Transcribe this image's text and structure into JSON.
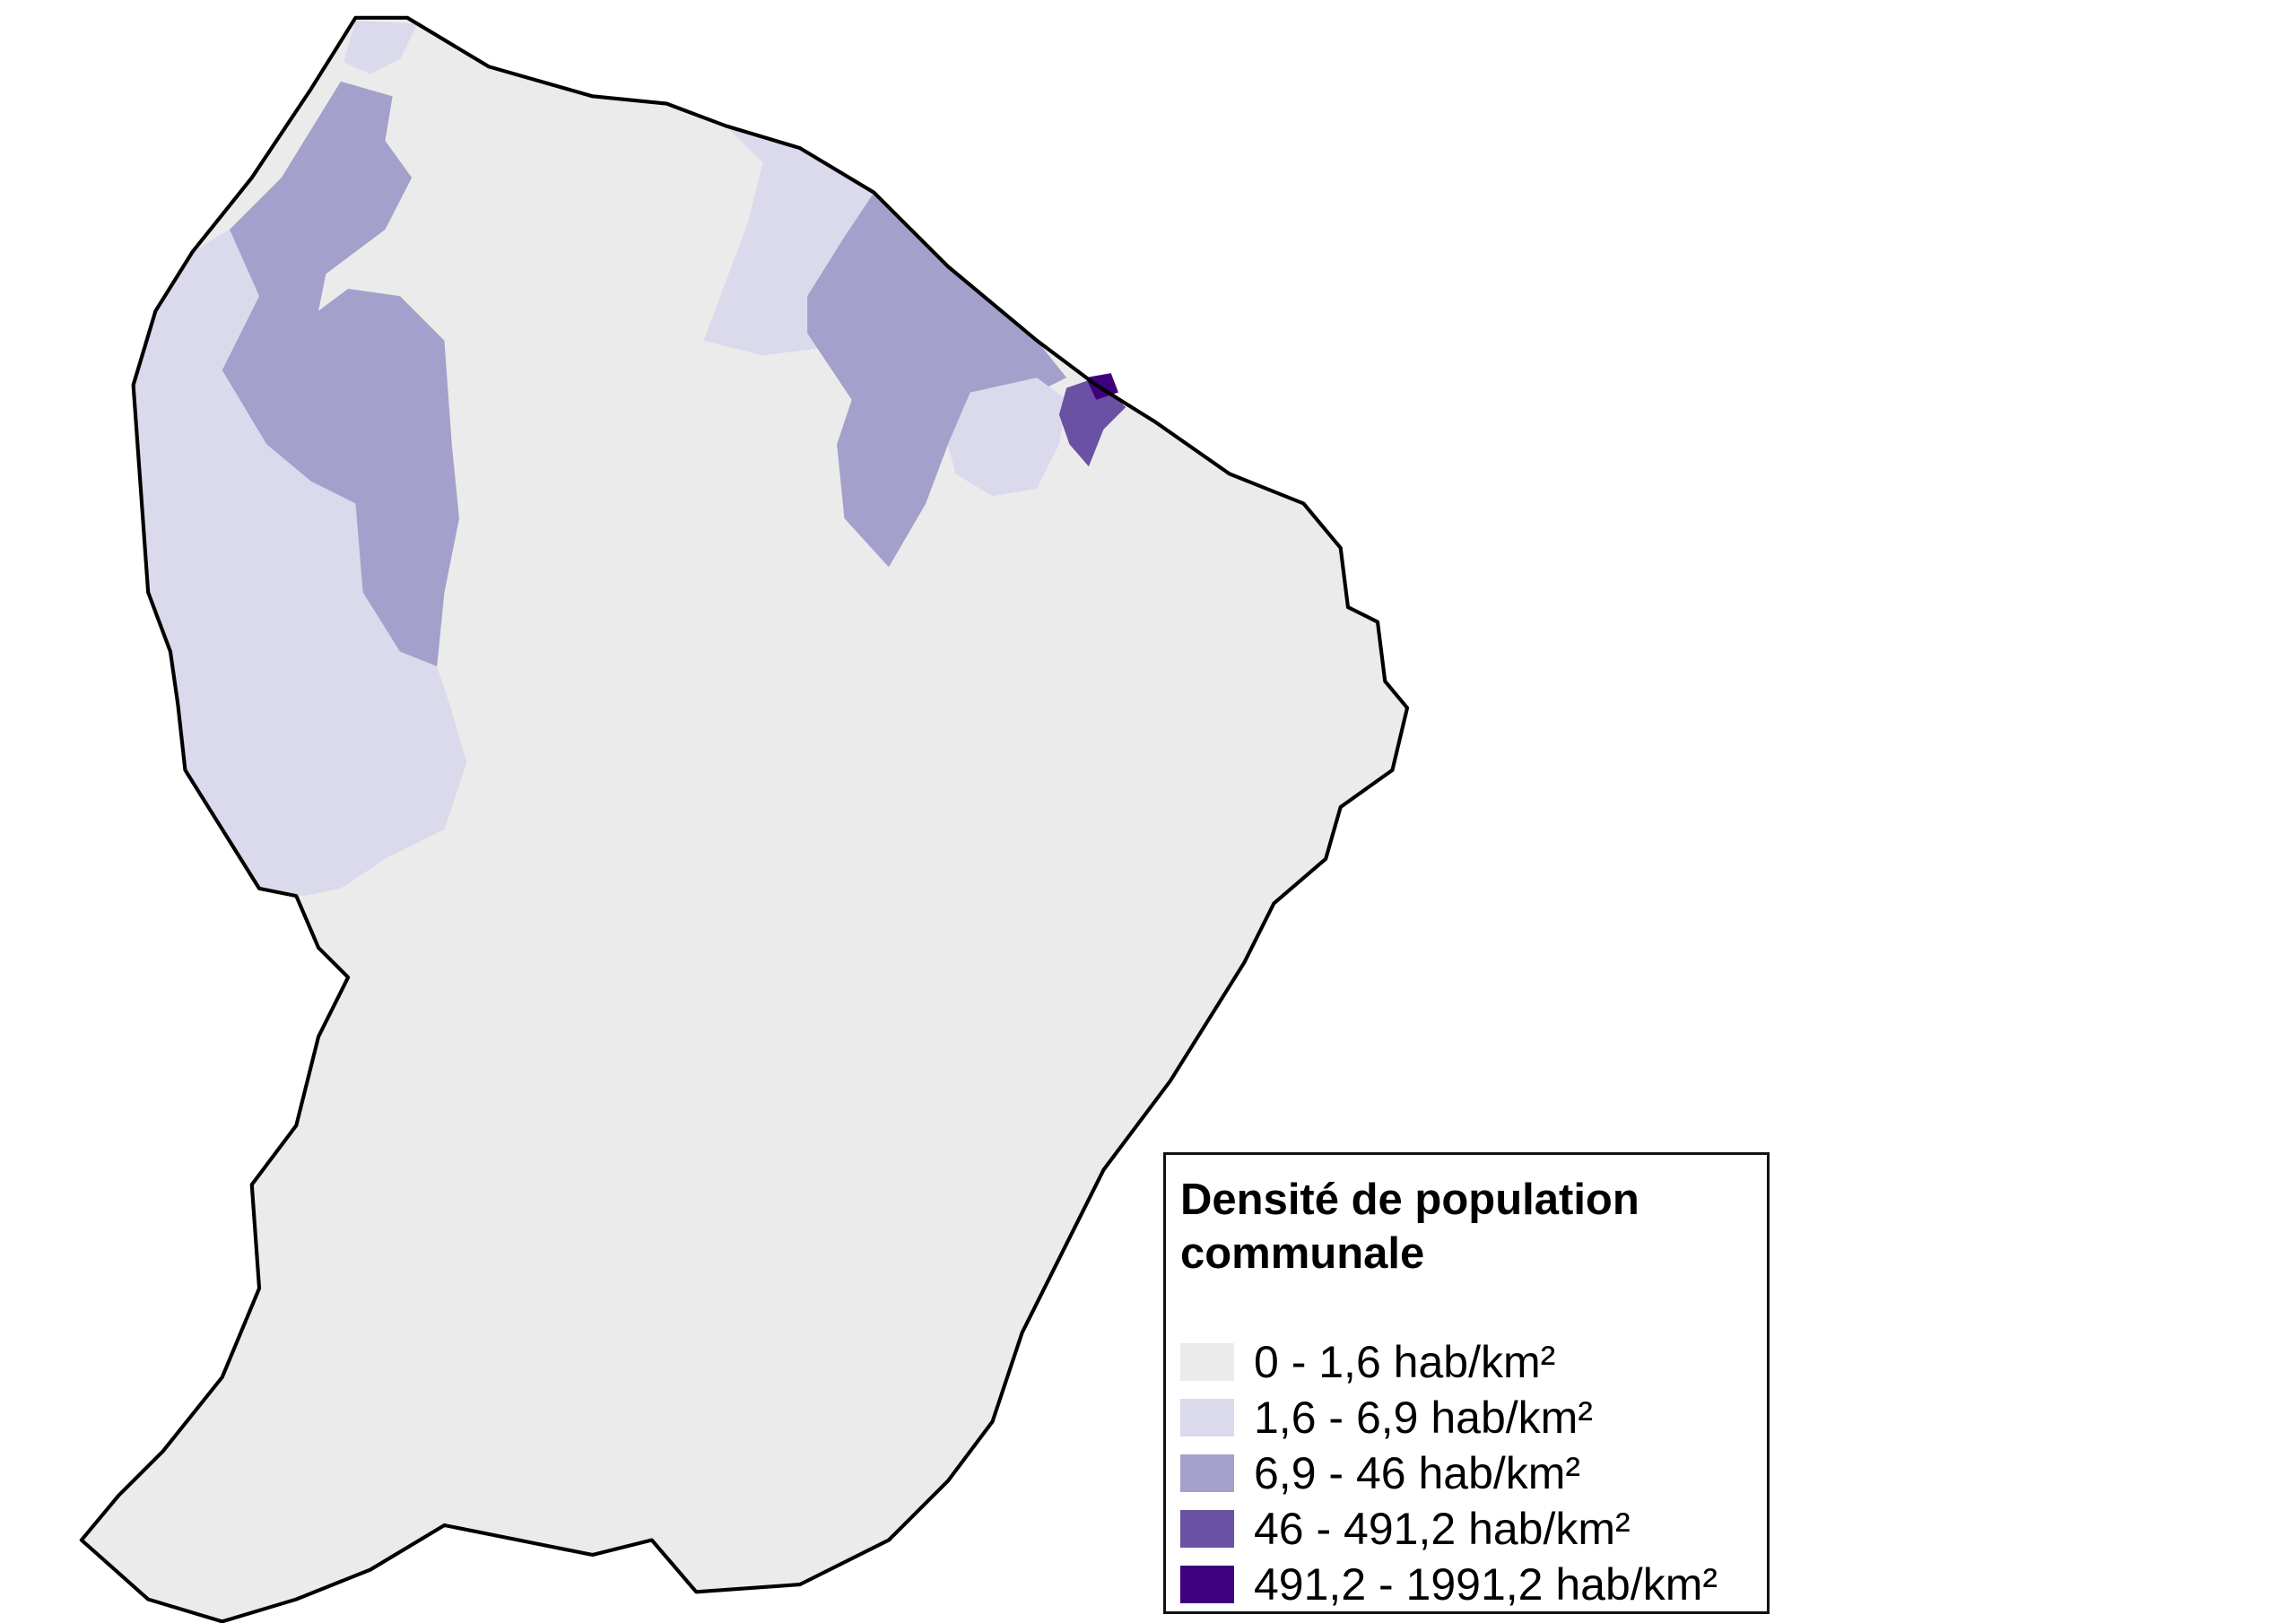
{
  "map": {
    "regions": [
      {
        "class_index": 0
      },
      {
        "class_index": 1
      },
      {
        "class_index": 2
      },
      {
        "class_index": 3
      },
      {
        "class_index": 4
      }
    ],
    "outline_color": "#000000"
  },
  "legend": {
    "title": "Densité de population communale",
    "items": [
      {
        "label": "0 - 1,6 hab/km²",
        "color": "#ebebeb"
      },
      {
        "label": "1,6 - 6,9 hab/km²",
        "color": "#dadaec"
      },
      {
        "label": "6,9 - 46 hab/km²",
        "color": "#a3a0cb"
      },
      {
        "label": "46 - 491,2 hab/km²",
        "color": "#6a51a3"
      },
      {
        "label": "491,2 - 1991,2 hab/km²",
        "color": "#3f007d"
      }
    ]
  }
}
